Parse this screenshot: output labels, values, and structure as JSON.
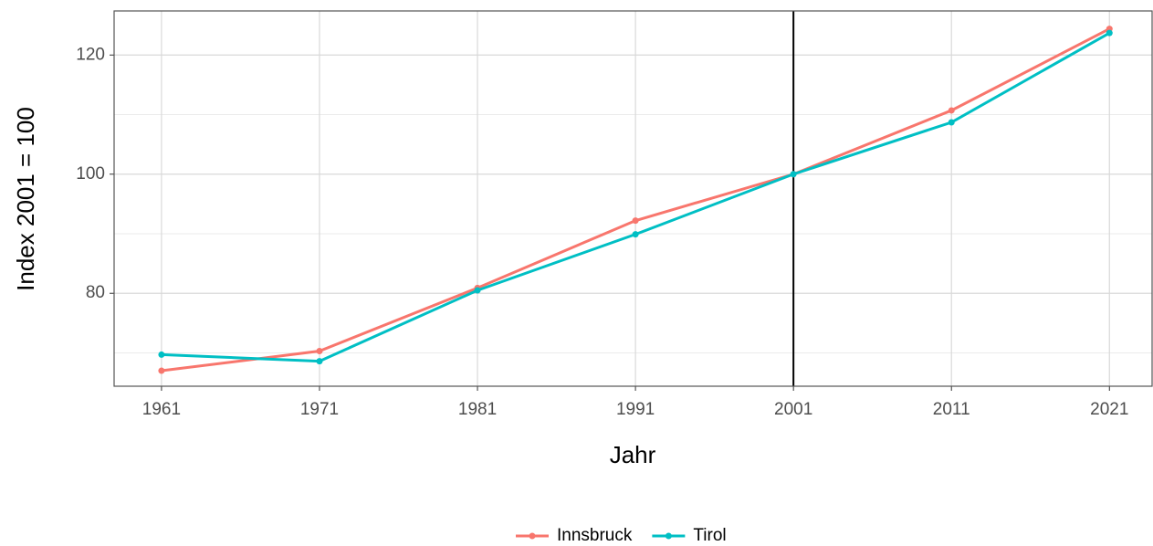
{
  "chart_data": {
    "type": "line",
    "x_label": "Jahr",
    "y_label": "Index 2001 = 100",
    "x": [
      1961,
      1971,
      1981,
      1991,
      2001,
      2011,
      2021
    ],
    "series": [
      {
        "name": "Innsbruck",
        "color": "#F8766D",
        "values": [
          67.0,
          70.3,
          80.9,
          92.2,
          100,
          110.7,
          124.4
        ]
      },
      {
        "name": "Tirol",
        "color": "#00BFC4",
        "values": [
          69.7,
          68.6,
          80.5,
          89.9,
          100,
          108.7,
          123.7
        ]
      }
    ],
    "xlim": [
      1958,
      2023.7
    ],
    "xticks": [
      1961,
      1971,
      1981,
      1991,
      2001,
      2011,
      2021
    ],
    "ylim": [
      64.4,
      127.4
    ],
    "yticks": [
      80,
      100,
      120
    ],
    "y_minor_grid": [
      70,
      90,
      110
    ],
    "vline": 2001,
    "grid": true,
    "legend": "bottom"
  }
}
